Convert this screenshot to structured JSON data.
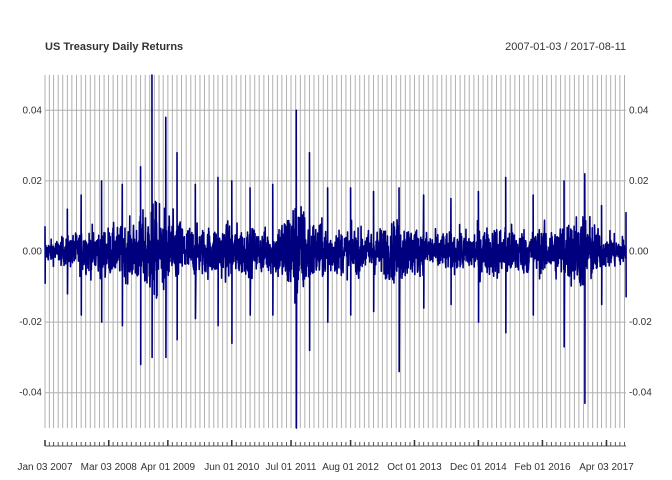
{
  "chart_data": {
    "type": "line",
    "title": "US Treasury Daily Returns",
    "subtitle": "2007-01-03 / 2017-08-11",
    "xlabel": "",
    "ylabel": "",
    "x_start": "2007-01-03",
    "x_end": "2017-08-11",
    "ylim": [
      -0.05,
      0.05
    ],
    "y_ticks": [
      -0.04,
      -0.02,
      0.0,
      0.02,
      0.04
    ],
    "y_tick_labels": [
      "-0.04",
      "-0.02",
      "0.00",
      "0.02",
      "0.04"
    ],
    "y_axis_side": "both",
    "x_tick_labels": [
      {
        "date": "2007-01-03",
        "label": "Jan 03 2007"
      },
      {
        "date": "2008-03-03",
        "label": "Mar 03 2008"
      },
      {
        "date": "2009-04-01",
        "label": "Apr 01 2009"
      },
      {
        "date": "2010-06-01",
        "label": "Jun 01 2010"
      },
      {
        "date": "2011-07-01",
        "label": "Jul 01 2011"
      },
      {
        "date": "2012-08-01",
        "label": "Aug 01 2012"
      },
      {
        "date": "2013-10-01",
        "label": "Oct 01 2013"
      },
      {
        "date": "2014-12-01",
        "label": "Dec 01 2014"
      },
      {
        "date": "2016-02-01",
        "label": "Feb 01 2016"
      },
      {
        "date": "2017-04-03",
        "label": "Apr 03 2017"
      }
    ],
    "grid": true,
    "grid_frequency": "monthly",
    "line_color": "#00007F",
    "grid_color": "#B0B0B0",
    "series": [
      {
        "values_note_free": true,
        "envelope": [
          {
            "date": "2007-01-03",
            "max": 0.007,
            "min": -0.009
          },
          {
            "date": "2007-06-01",
            "max": 0.012,
            "min": -0.012
          },
          {
            "date": "2007-09-01",
            "max": 0.016,
            "min": -0.018
          },
          {
            "date": "2008-01-15",
            "max": 0.02,
            "min": -0.02
          },
          {
            "date": "2008-06-01",
            "max": 0.019,
            "min": -0.021
          },
          {
            "date": "2008-10-01",
            "max": 0.024,
            "min": -0.032
          },
          {
            "date": "2008-12-16",
            "max": 0.052,
            "min": -0.03
          },
          {
            "date": "2009-03-18",
            "max": 0.038,
            "min": -0.03
          },
          {
            "date": "2009-06-01",
            "max": 0.028,
            "min": -0.025
          },
          {
            "date": "2009-10-01",
            "max": 0.019,
            "min": -0.019
          },
          {
            "date": "2010-03-01",
            "max": 0.021,
            "min": -0.021
          },
          {
            "date": "2010-06-01",
            "max": 0.02,
            "min": -0.026
          },
          {
            "date": "2010-10-01",
            "max": 0.018,
            "min": -0.018
          },
          {
            "date": "2011-03-01",
            "max": 0.019,
            "min": -0.018
          },
          {
            "date": "2011-08-05",
            "max": 0.04,
            "min": -0.05
          },
          {
            "date": "2011-11-01",
            "max": 0.028,
            "min": -0.028
          },
          {
            "date": "2012-03-01",
            "max": 0.018,
            "min": -0.02
          },
          {
            "date": "2012-08-01",
            "max": 0.018,
            "min": -0.018
          },
          {
            "date": "2013-01-01",
            "max": 0.017,
            "min": -0.017
          },
          {
            "date": "2013-06-20",
            "max": 0.018,
            "min": -0.034
          },
          {
            "date": "2013-12-01",
            "max": 0.016,
            "min": -0.016
          },
          {
            "date": "2014-06-01",
            "max": 0.015,
            "min": -0.015
          },
          {
            "date": "2014-12-01",
            "max": 0.017,
            "min": -0.02
          },
          {
            "date": "2015-06-01",
            "max": 0.021,
            "min": -0.023
          },
          {
            "date": "2015-12-01",
            "max": 0.016,
            "min": -0.018
          },
          {
            "date": "2016-06-24",
            "max": 0.02,
            "min": -0.027
          },
          {
            "date": "2016-11-09",
            "max": 0.022,
            "min": -0.043
          },
          {
            "date": "2017-03-01",
            "max": 0.013,
            "min": -0.015
          },
          {
            "date": "2017-08-11",
            "max": 0.011,
            "min": -0.013
          }
        ]
      }
    ]
  }
}
